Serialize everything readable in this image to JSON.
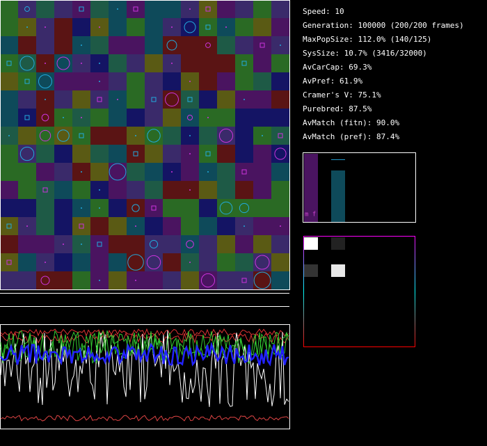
{
  "stats": [
    "Speed: 10",
    "Generation: 100000 (200/200 frames)",
    "MaxPopSize: 112.0% (140/125)",
    "SysSize: 10.7% (3416/32000)",
    "AvCarCap: 69.3%",
    "AvPref: 61.9%",
    "Cramer's V: 75.1%",
    "Purebred: 87.5%",
    "AvMatch (fitn): 90.0%",
    "AvMatch (pref): 87.4%"
  ],
  "bar_panel": {
    "label": "m f"
  }
}
